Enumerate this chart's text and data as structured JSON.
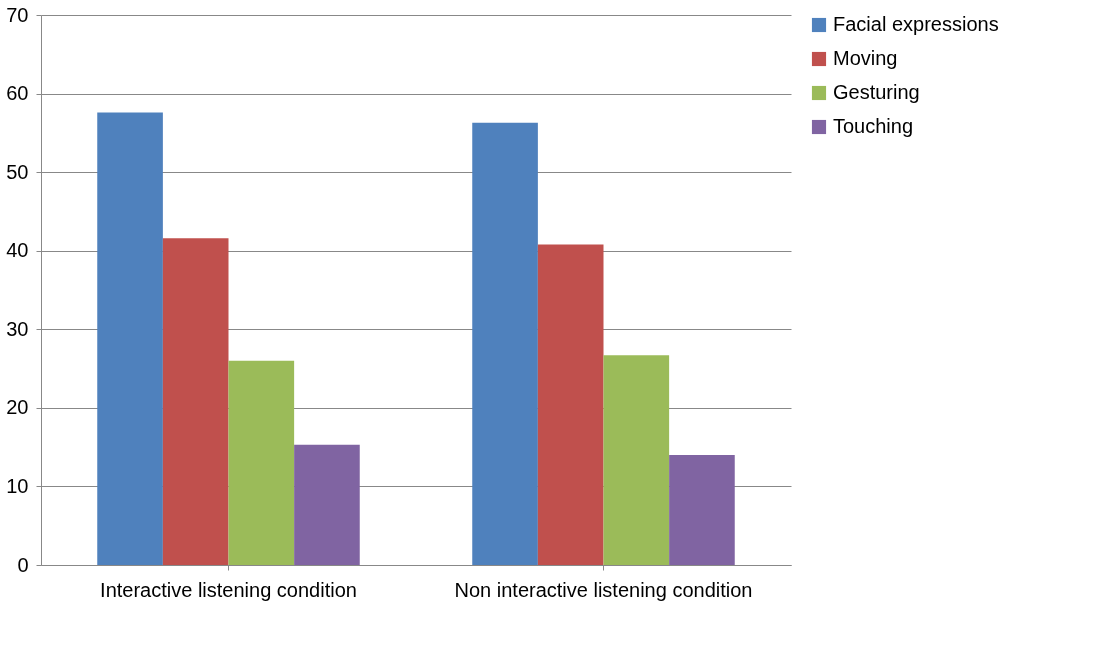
{
  "chart_data": {
    "type": "bar",
    "categories": [
      "Interactive listening condition",
      "Non interactive listening condition"
    ],
    "series": [
      {
        "name": "Facial expressions",
        "color": "#4f81bd",
        "values": [
          57.6,
          56.3
        ]
      },
      {
        "name": "Moving",
        "color": "#c0504d",
        "values": [
          41.6,
          40.8
        ]
      },
      {
        "name": "Gesturing",
        "color": "#9bbb59",
        "values": [
          26.0,
          26.7
        ]
      },
      {
        "name": "Touching",
        "color": "#8064a2",
        "values": [
          15.3,
          14.0
        ]
      }
    ],
    "ylim": [
      0,
      70
    ],
    "yticks": [
      0,
      10,
      20,
      30,
      40,
      50,
      60,
      70
    ],
    "grid": "y",
    "legend": "right"
  }
}
